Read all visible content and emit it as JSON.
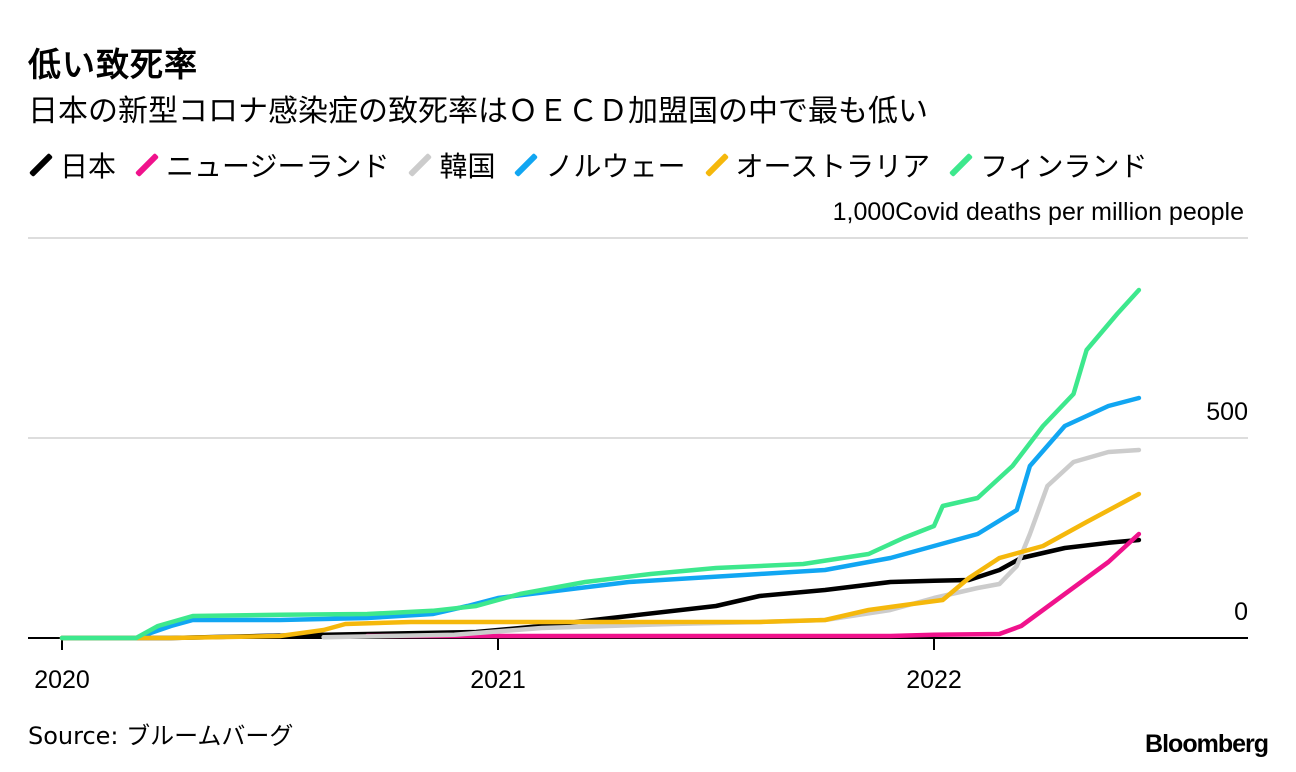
{
  "title": "低い致死率",
  "subtitle": "日本の新型コロナ感染症の致死率はＯＥＣＤ加盟国の中で最も低い",
  "legend": [
    {
      "name": "日本",
      "color": "#000000"
    },
    {
      "name": "ニュージーランド",
      "color": "#f0128c"
    },
    {
      "name": "韓国",
      "color": "#cccccc"
    },
    {
      "name": "ノルウェー",
      "color": "#11a6f2"
    },
    {
      "name": "オーストラリア",
      "color": "#f5b80c"
    },
    {
      "name": "フィンランド",
      "color": "#3de88d"
    }
  ],
  "source": "Source: ブルームバーグ",
  "brand": "Bloomberg",
  "chart_data": {
    "type": "line",
    "title": "低い致死率",
    "ylabel": "Covid deaths per million people",
    "y_top_label": "1,000",
    "ylim": [
      0,
      1000
    ],
    "yticks": [
      0,
      500,
      1000
    ],
    "xlim": [
      2020.0,
      2022.75
    ],
    "xticks": [
      2020,
      2021,
      2022
    ],
    "xtick_labels": [
      "2020",
      "2021",
      "2022"
    ],
    "series": [
      {
        "name": "日本",
        "color": "#000000",
        "points": [
          [
            2020.0,
            0
          ],
          [
            2020.25,
            0
          ],
          [
            2020.45,
            5
          ],
          [
            2020.7,
            10
          ],
          [
            2020.95,
            15
          ],
          [
            2021.1,
            30
          ],
          [
            2021.3,
            55
          ],
          [
            2021.5,
            80
          ],
          [
            2021.6,
            105
          ],
          [
            2021.75,
            120
          ],
          [
            2021.9,
            140
          ],
          [
            2022.0,
            143
          ],
          [
            2022.08,
            145
          ],
          [
            2022.15,
            170
          ],
          [
            2022.2,
            200
          ],
          [
            2022.3,
            225
          ],
          [
            2022.4,
            238
          ],
          [
            2022.47,
            245
          ]
        ]
      },
      {
        "name": "ニュージーランド",
        "color": "#f0128c",
        "points": [
          [
            2020.7,
            5
          ],
          [
            2021.0,
            5
          ],
          [
            2021.5,
            5
          ],
          [
            2021.9,
            5
          ],
          [
            2022.0,
            8
          ],
          [
            2022.15,
            10
          ],
          [
            2022.2,
            30
          ],
          [
            2022.3,
            110
          ],
          [
            2022.4,
            190
          ],
          [
            2022.47,
            260
          ]
        ]
      },
      {
        "name": "韓国",
        "color": "#cccccc",
        "points": [
          [
            2020.6,
            2
          ],
          [
            2020.9,
            8
          ],
          [
            2021.1,
            25
          ],
          [
            2021.4,
            35
          ],
          [
            2021.6,
            40
          ],
          [
            2021.75,
            45
          ],
          [
            2021.9,
            70
          ],
          [
            2022.0,
            100
          ],
          [
            2022.1,
            125
          ],
          [
            2022.15,
            135
          ],
          [
            2022.19,
            180
          ],
          [
            2022.22,
            260
          ],
          [
            2022.26,
            380
          ],
          [
            2022.32,
            440
          ],
          [
            2022.4,
            465
          ],
          [
            2022.47,
            470
          ]
        ]
      },
      {
        "name": "ノルウェー",
        "color": "#11a6f2",
        "points": [
          [
            2020.0,
            0
          ],
          [
            2020.17,
            0
          ],
          [
            2020.25,
            30
          ],
          [
            2020.3,
            45
          ],
          [
            2020.5,
            45
          ],
          [
            2020.7,
            50
          ],
          [
            2020.85,
            60
          ],
          [
            2020.93,
            80
          ],
          [
            2021.0,
            100
          ],
          [
            2021.15,
            120
          ],
          [
            2021.3,
            140
          ],
          [
            2021.45,
            150
          ],
          [
            2021.6,
            160
          ],
          [
            2021.75,
            170
          ],
          [
            2021.9,
            200
          ],
          [
            2022.0,
            230
          ],
          [
            2022.1,
            260
          ],
          [
            2022.19,
            320
          ],
          [
            2022.22,
            430
          ],
          [
            2022.3,
            530
          ],
          [
            2022.4,
            580
          ],
          [
            2022.47,
            600
          ]
        ]
      },
      {
        "name": "オーストラリア",
        "color": "#f5b80c",
        "points": [
          [
            2020.0,
            0
          ],
          [
            2020.25,
            0
          ],
          [
            2020.5,
            5
          ],
          [
            2020.6,
            20
          ],
          [
            2020.65,
            35
          ],
          [
            2020.8,
            40
          ],
          [
            2021.0,
            40
          ],
          [
            2021.3,
            40
          ],
          [
            2021.6,
            40
          ],
          [
            2021.75,
            45
          ],
          [
            2021.85,
            70
          ],
          [
            2021.95,
            85
          ],
          [
            2022.02,
            95
          ],
          [
            2022.08,
            150
          ],
          [
            2022.15,
            200
          ],
          [
            2022.25,
            230
          ],
          [
            2022.35,
            290
          ],
          [
            2022.47,
            360
          ]
        ]
      },
      {
        "name": "フィンランド",
        "color": "#3de88d",
        "points": [
          [
            2020.0,
            0
          ],
          [
            2020.17,
            0
          ],
          [
            2020.22,
            30
          ],
          [
            2020.3,
            55
          ],
          [
            2020.5,
            58
          ],
          [
            2020.7,
            60
          ],
          [
            2020.85,
            68
          ],
          [
            2020.95,
            80
          ],
          [
            2021.05,
            110
          ],
          [
            2021.2,
            140
          ],
          [
            2021.35,
            160
          ],
          [
            2021.5,
            175
          ],
          [
            2021.7,
            185
          ],
          [
            2021.85,
            210
          ],
          [
            2021.93,
            250
          ],
          [
            2022.0,
            280
          ],
          [
            2022.02,
            330
          ],
          [
            2022.1,
            350
          ],
          [
            2022.18,
            430
          ],
          [
            2022.25,
            530
          ],
          [
            2022.32,
            610
          ],
          [
            2022.35,
            720
          ],
          [
            2022.42,
            810
          ],
          [
            2022.47,
            870
          ]
        ]
      }
    ]
  }
}
